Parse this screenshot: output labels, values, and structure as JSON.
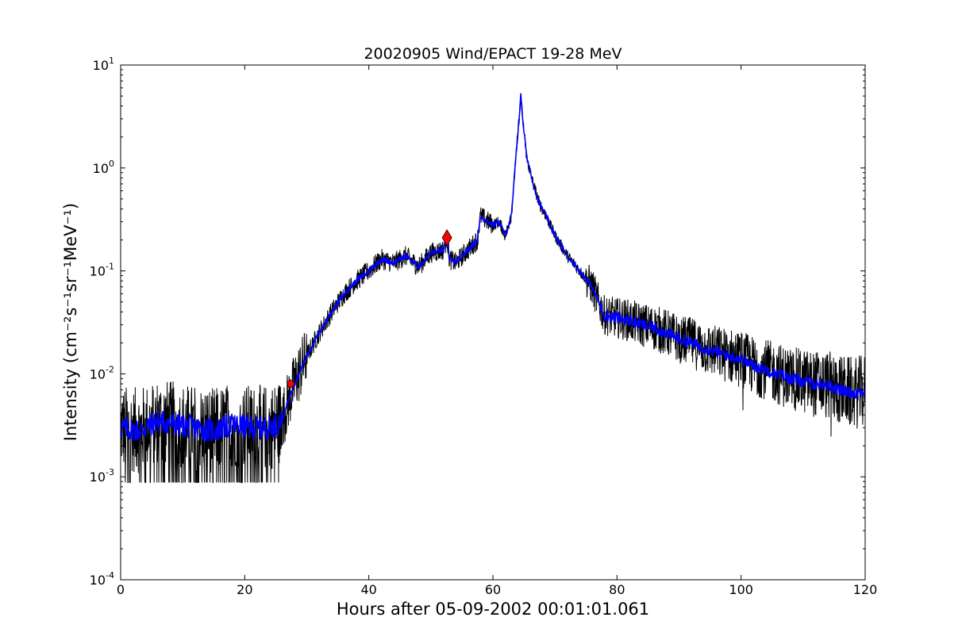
{
  "chart_data": {
    "type": "line",
    "title": "20020905 Wind/EPACT 19-28 MeV",
    "xlabel": "Hours after 05-09-2002 00:01:01.061",
    "ylabel": "Intensity (cm⁻²s⁻¹sr⁻¹MeV⁻¹)",
    "xlim": [
      0,
      120
    ],
    "ylim": [
      0.0001,
      10
    ],
    "yscale": "log",
    "grid": false,
    "x_ticks": [
      0,
      20,
      40,
      60,
      80,
      100,
      120
    ],
    "x_tick_labels": [
      "0",
      "20",
      "40",
      "60",
      "80",
      "100",
      "120"
    ],
    "y_ticks": [
      0.0001,
      0.001,
      0.01,
      0.1,
      1,
      10
    ],
    "y_tick_labels": [
      {
        "base": "10",
        "exp": "-4"
      },
      {
        "base": "10",
        "exp": "-3"
      },
      {
        "base": "10",
        "exp": "-2"
      },
      {
        "base": "10",
        "exp": "-1"
      },
      {
        "base": "10",
        "exp": "0"
      },
      {
        "base": "10",
        "exp": "1"
      }
    ],
    "series": [
      {
        "role": "raw",
        "color": "#000000",
        "x": [
          0,
          3,
          6,
          9,
          12,
          15,
          18,
          21,
          24,
          26,
          27,
          28,
          29,
          30,
          32,
          34,
          36,
          38,
          40,
          42,
          44,
          46,
          48,
          50,
          52,
          52.6,
          53,
          54,
          56,
          57.5,
          58,
          60,
          61,
          62,
          63,
          63.8,
          64.3,
          64.5,
          64.8,
          65.5,
          66.5,
          67.5,
          68.5,
          70,
          72,
          74,
          76,
          77,
          78,
          80,
          82,
          84,
          86,
          88,
          90,
          92,
          95,
          98,
          100,
          102,
          104,
          106,
          108,
          110,
          112,
          114,
          116,
          118,
          120
        ],
        "y": [
          0.003,
          0.0028,
          0.0035,
          0.0032,
          0.003,
          0.0028,
          0.0032,
          0.003,
          0.003,
          0.0035,
          0.0055,
          0.008,
          0.011,
          0.015,
          0.025,
          0.04,
          0.06,
          0.08,
          0.1,
          0.13,
          0.12,
          0.14,
          0.11,
          0.15,
          0.16,
          0.21,
          0.13,
          0.12,
          0.16,
          0.2,
          0.34,
          0.28,
          0.3,
          0.22,
          0.35,
          1.5,
          3.5,
          5.0,
          3.0,
          1.2,
          0.7,
          0.45,
          0.35,
          0.22,
          0.14,
          0.1,
          0.07,
          0.05,
          0.037,
          0.035,
          0.033,
          0.03,
          0.028,
          0.025,
          0.022,
          0.02,
          0.017,
          0.015,
          0.014,
          0.012,
          0.011,
          0.01,
          0.009,
          0.0085,
          0.008,
          0.0078,
          0.007,
          0.0065,
          0.0068
        ]
      },
      {
        "role": "smoothed",
        "color": "#0000ff",
        "x": [
          0,
          3,
          6,
          9,
          12,
          15,
          18,
          21,
          24,
          26,
          27,
          28,
          29,
          30,
          32,
          34,
          36,
          38,
          40,
          42,
          44,
          46,
          48,
          50,
          52,
          52.6,
          53,
          54,
          56,
          57.5,
          58,
          60,
          61,
          62,
          63,
          63.8,
          64.3,
          64.5,
          64.8,
          65.5,
          66.5,
          67.5,
          68.5,
          70,
          72,
          74,
          76,
          77,
          78,
          80,
          82,
          84,
          86,
          88,
          90,
          92,
          95,
          98,
          100,
          102,
          104,
          106,
          108,
          110,
          112,
          114,
          116,
          118,
          120
        ],
        "y": [
          0.003,
          0.0028,
          0.0035,
          0.0032,
          0.003,
          0.0028,
          0.0032,
          0.003,
          0.003,
          0.0035,
          0.0055,
          0.008,
          0.011,
          0.015,
          0.025,
          0.04,
          0.06,
          0.08,
          0.1,
          0.13,
          0.12,
          0.14,
          0.11,
          0.15,
          0.16,
          0.21,
          0.13,
          0.12,
          0.16,
          0.2,
          0.34,
          0.28,
          0.3,
          0.22,
          0.35,
          1.5,
          3.5,
          5.0,
          3.0,
          1.2,
          0.7,
          0.45,
          0.35,
          0.22,
          0.14,
          0.1,
          0.07,
          0.05,
          0.037,
          0.035,
          0.033,
          0.03,
          0.028,
          0.025,
          0.022,
          0.02,
          0.017,
          0.015,
          0.014,
          0.012,
          0.011,
          0.01,
          0.009,
          0.0085,
          0.008,
          0.0078,
          0.007,
          0.0065,
          0.0068
        ]
      }
    ],
    "noise": {
      "color": "#000000",
      "floor_until_x": 26,
      "floor_value": 0.00088
    },
    "markers": [
      {
        "shape": "circle",
        "color": "#ff0000",
        "x": 27.4,
        "y": 0.008
      },
      {
        "shape": "diamond",
        "color": "#ff0000",
        "x": 52.6,
        "y": 0.21
      }
    ]
  }
}
